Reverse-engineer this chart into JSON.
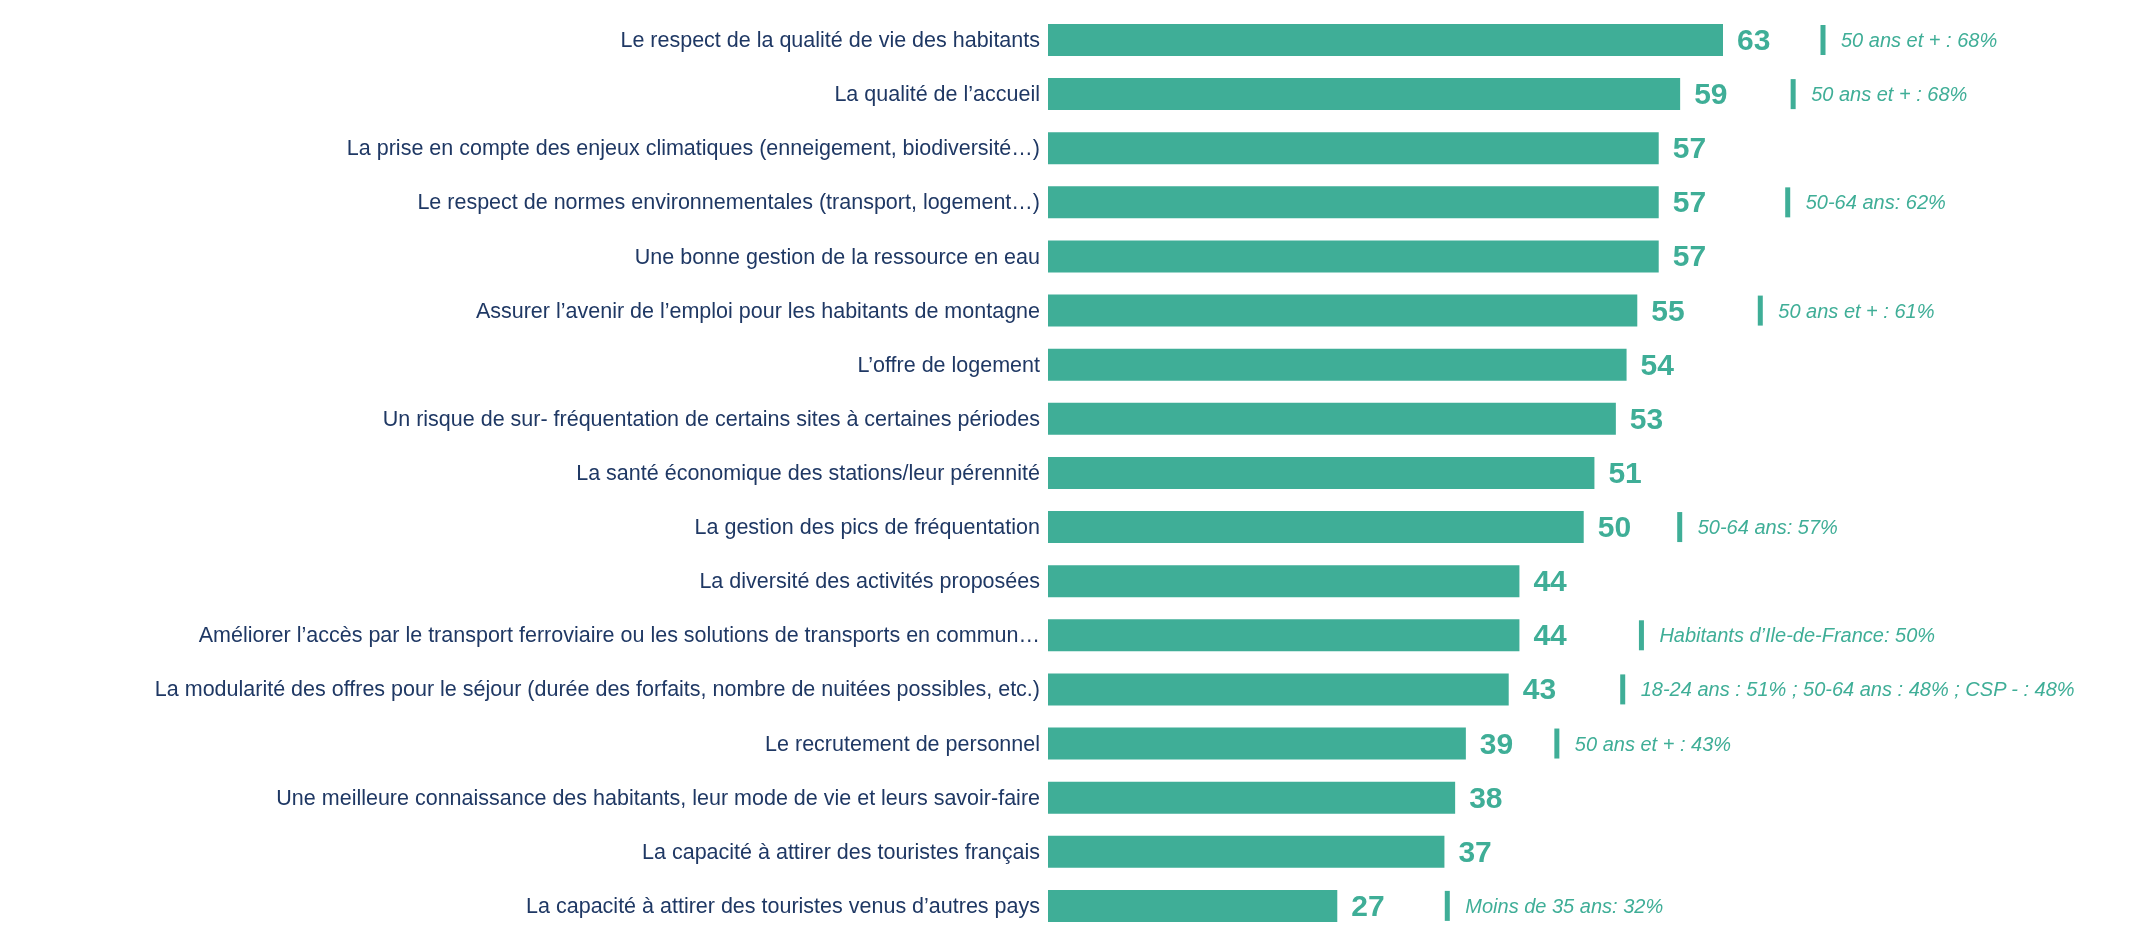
{
  "chart_data": {
    "type": "bar",
    "orientation": "horizontal",
    "data_labels": true,
    "categories": [
      "Le respect de la qualité de vie des habitants",
      "La qualité de l’accueil",
      "La prise en compte des enjeux climatiques (enneigement, biodiversité…)",
      "Le respect de normes environnementales (transport, logement…)",
      "Une bonne gestion de la ressource en eau",
      "Assurer l’avenir de l’emploi pour les habitants de montagne",
      "L’offre de logement",
      "Un risque de sur- fréquentation de certains sites à certaines périodes",
      "La santé économique des stations/leur pérennité",
      "La gestion des pics de fréquentation",
      "La diversité des activités proposées",
      "Améliorer l’accès par le transport ferroviaire ou les solutions de transports en commun…",
      "La modularité des offres pour le séjour (durée des forfaits, nombre de nuitées possibles, etc.)",
      "Le recrutement de personnel",
      "Une meilleure connaissance des habitants, leur mode de vie et leurs savoir-faire",
      "La capacité à attirer des touristes français",
      "La capacité à attirer des touristes venus d’autres pays"
    ],
    "values": [
      63,
      59,
      57,
      57,
      57,
      55,
      54,
      53,
      51,
      50,
      44,
      44,
      43,
      39,
      38,
      37,
      27
    ],
    "color": "#3fae97",
    "annotations": [
      "50 ans et + : 68%",
      "50 ans et + : 68%",
      "50-64 ans: 62%",
      "50 ans et + : 61%",
      "50-64 ans: 57%",
      "Habitants d’Ile-de-France: 50%",
      "18-24 ans : 51% ; 50-64 ans : 48% ; CSP - : 48%",
      "50 ans et + : 43%",
      "Moins de 35 ans: 32%"
    ]
  }
}
